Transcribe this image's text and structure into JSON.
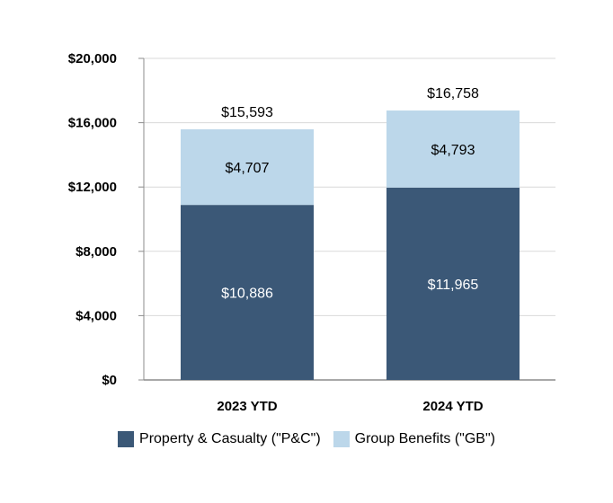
{
  "chart_data": {
    "type": "stacked-bar",
    "categories": [
      "2023 YTD",
      "2024 YTD"
    ],
    "series": [
      {
        "name": "Property & Casualty (\"P&C\")",
        "values": [
          10886,
          11965
        ],
        "labels": [
          "$10,886",
          "$11,965"
        ],
        "color": "#3b5877",
        "label_color": "#ffffff"
      },
      {
        "name": "Group Benefits (\"GB\")",
        "values": [
          4707,
          4793
        ],
        "labels": [
          "$4,707",
          "$4,793"
        ],
        "color": "#bcd7ea",
        "label_color": "#000000"
      }
    ],
    "totals": [
      15593,
      16758
    ],
    "total_labels": [
      "$15,593",
      "$16,758"
    ],
    "ylim": [
      0,
      20000
    ],
    "yticks": [
      0,
      4000,
      8000,
      12000,
      16000,
      20000
    ],
    "ytick_labels": [
      "$0",
      "$4,000",
      "$8,000",
      "$12,000",
      "$16,000",
      "$20,000"
    ],
    "title": "",
    "xlabel": "",
    "ylabel": "",
    "grid": true,
    "legend_position": "bottom"
  }
}
